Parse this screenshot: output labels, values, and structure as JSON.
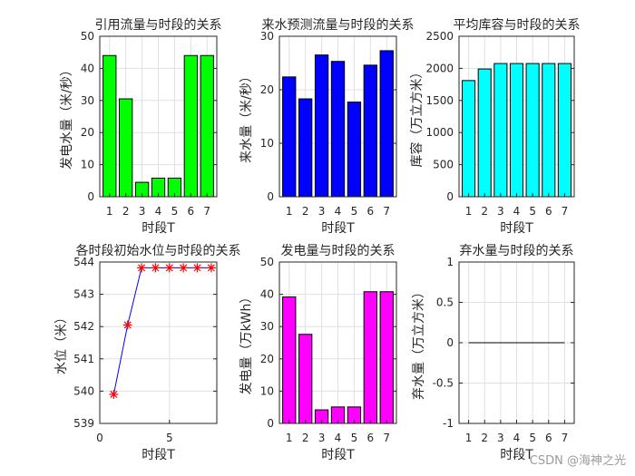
{
  "watermark": "CSDN @海神之光",
  "chart_data": [
    {
      "type": "bar",
      "title": "引用流量与时段的关系",
      "xlabel": "时段T",
      "ylabel": "发电水量（米/秒）",
      "categories": [
        "1",
        "2",
        "3",
        "4",
        "5",
        "6",
        "7"
      ],
      "values": [
        44,
        30.5,
        4.5,
        5.8,
        5.8,
        44,
        44
      ],
      "ylim": [
        0,
        50
      ],
      "yticks": [
        0,
        10,
        20,
        30,
        40,
        50
      ],
      "color": "#00ff00",
      "grid": true
    },
    {
      "type": "bar",
      "title": "来水预测流量与时段的关系",
      "xlabel": "时段T",
      "ylabel": "来水量（米/秒）",
      "categories": [
        "1",
        "2",
        "3",
        "4",
        "5",
        "6",
        "7"
      ],
      "values": [
        22.4,
        18.3,
        26.5,
        25.3,
        17.7,
        24.6,
        27.3
      ],
      "ylim": [
        0,
        30
      ],
      "yticks": [
        0,
        10,
        20,
        30
      ],
      "color": "#0000ff",
      "grid": true
    },
    {
      "type": "bar",
      "title": "平均库容与时段的关系",
      "xlabel": "时段T",
      "ylabel": "库容（万立方米）",
      "categories": [
        "1",
        "2",
        "3",
        "4",
        "5",
        "6",
        "7"
      ],
      "values": [
        1810,
        1990,
        2075,
        2075,
        2075,
        2075,
        2075
      ],
      "ylim": [
        0,
        2500
      ],
      "yticks": [
        0,
        500,
        1000,
        1500,
        2000,
        2500
      ],
      "color": "#00ffff",
      "grid": true
    },
    {
      "type": "line",
      "title": "各时段初始水位与时段的关系",
      "xlabel": "时段T",
      "ylabel": "水位（米）",
      "x": [
        1,
        2,
        3,
        4,
        5,
        6,
        7,
        8
      ],
      "y": [
        539.9,
        542.05,
        543.82,
        543.82,
        543.82,
        543.82,
        543.82,
        543.82
      ],
      "xlim": [
        0,
        8.4
      ],
      "xticks": [
        0,
        5
      ],
      "ylim": [
        539,
        544
      ],
      "yticks": [
        539,
        540,
        541,
        542,
        543,
        544
      ],
      "line_color": "#0000ff",
      "marker": "*",
      "marker_color": "#ff0000",
      "grid": true
    },
    {
      "type": "bar",
      "title": "发电量与时段的关系",
      "xlabel": "时段T",
      "ylabel": "发电量（万kWh）",
      "categories": [
        "1",
        "2",
        "3",
        "4",
        "5",
        "6",
        "7"
      ],
      "values": [
        39.2,
        27.6,
        4.2,
        5.1,
        5.1,
        40.8,
        40.8
      ],
      "ylim": [
        0,
        50
      ],
      "yticks": [
        0,
        10,
        20,
        30,
        40,
        50
      ],
      "color": "#ff00ff",
      "grid": true
    },
    {
      "type": "line",
      "title": "弃水量与时段的关系",
      "xlabel": "时段T",
      "ylabel": "弃水量（万立方米）",
      "categories": [
        "1",
        "2",
        "3",
        "4",
        "5",
        "6",
        "7"
      ],
      "x": [
        1,
        2,
        3,
        4,
        5,
        6,
        7
      ],
      "y": [
        0,
        0,
        0,
        0,
        0,
        0,
        0
      ],
      "ylim": [
        -1,
        1
      ],
      "yticks": [
        -1,
        -0.5,
        0,
        0.5,
        1
      ],
      "line_color": "#000000",
      "grid": true
    }
  ]
}
